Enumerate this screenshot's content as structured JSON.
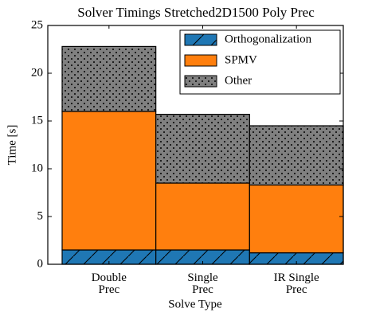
{
  "chart_data": {
    "type": "stacked_bar",
    "title": "Solver Timings Stretched2D1500 Poly Prec",
    "xlabel": "Solve Type",
    "ylabel": "Time [s]",
    "categories": [
      "Double Prec",
      "Single Prec",
      "IR Single Prec"
    ],
    "series": [
      {
        "name": "Orthogonalization",
        "color": "#1f77b4",
        "values": [
          1.5,
          1.5,
          1.2
        ]
      },
      {
        "name": "SPMV",
        "color": "#ff7f0e",
        "values": [
          14.5,
          7.0,
          7.1
        ]
      },
      {
        "name": "Other",
        "color": "#808080",
        "values": [
          6.8,
          7.2,
          6.2
        ]
      }
    ],
    "ylim": [
      0,
      25
    ],
    "yticks": [
      0,
      5,
      10,
      15,
      20,
      25
    ],
    "legend": "upper right"
  }
}
